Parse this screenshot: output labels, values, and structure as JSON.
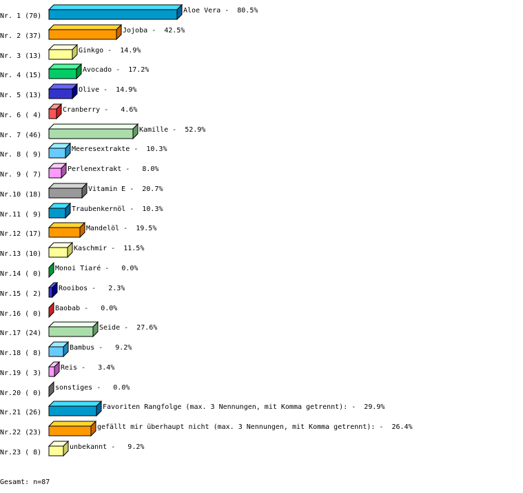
{
  "chart_data": {
    "type": "bar",
    "orientation": "horizontal",
    "style": "3d",
    "row_labels": [
      "Nr. 1 (70)",
      "Nr. 2 (37)",
      "Nr. 3 (13)",
      "Nr. 4 (15)",
      "Nr. 5 (13)",
      "Nr. 6 ( 4)",
      "Nr. 7 (46)",
      "Nr. 8 ( 9)",
      "Nr. 9 ( 7)",
      "Nr.10 (18)",
      "Nr.11 ( 9)",
      "Nr.12 (17)",
      "Nr.13 (10)",
      "Nr.14 ( 0)",
      "Nr.15 ( 2)",
      "Nr.16 ( 0)",
      "Nr.17 (24)",
      "Nr.18 ( 8)",
      "Nr.19 ( 3)",
      "Nr.20 ( 0)",
      "Nr.21 (26)",
      "Nr.22 (23)",
      "Nr.23 ( 8)"
    ],
    "categories": [
      "Aloe Vera",
      "Jojoba",
      "Ginkgo",
      "Avocado",
      "Olive",
      "Cranberry",
      "Kamille",
      "Meeresextrakte",
      "Perlenextrakt",
      "Vitamin E",
      "Traubenkernöl",
      "Mandelöl",
      "Kaschmir",
      "Monoi Tiaré",
      "Rooibos",
      "Baobab",
      "Seide",
      "Bambus",
      "Reis",
      "sonstiges",
      "Favoriten Rangfolge (max. 3 Nennungen, mit Komma getrennt):",
      "gefällt mir überhaupt nicht (max. 3 Nennungen, mit Komma getrennt):",
      "unbekannt"
    ],
    "counts": [
      70,
      37,
      13,
      15,
      13,
      4,
      46,
      9,
      7,
      18,
      9,
      17,
      10,
      0,
      2,
      0,
      24,
      8,
      3,
      0,
      26,
      23,
      8
    ],
    "values": [
      80.5,
      42.5,
      14.9,
      17.2,
      14.9,
      4.6,
      52.9,
      10.3,
      8.0,
      20.7,
      10.3,
      19.5,
      11.5,
      0.0,
      2.3,
      0.0,
      27.6,
      9.2,
      3.4,
      0.0,
      29.9,
      26.4,
      9.2
    ],
    "unit": "%",
    "xlim": [
      0,
      100
    ],
    "palette": [
      {
        "front": "#0099cc",
        "top": "#44ddff",
        "side": "#006699"
      },
      {
        "front": "#ff9900",
        "top": "#ffd633",
        "side": "#cc6600"
      },
      {
        "front": "#ffff99",
        "top": "#ffffdd",
        "side": "#cccc66"
      },
      {
        "front": "#00cc66",
        "top": "#44ff99",
        "side": "#009933"
      },
      {
        "front": "#3333cc",
        "top": "#6666ff",
        "side": "#000088"
      },
      {
        "front": "#ff5555",
        "top": "#ff9999",
        "side": "#cc2222"
      },
      {
        "front": "#aaddaa",
        "top": "#eeffee",
        "side": "#669966"
      },
      {
        "front": "#66ccff",
        "top": "#99eeff",
        "side": "#2288bb"
      },
      {
        "front": "#ff99ff",
        "top": "#ffccff",
        "side": "#aa55aa"
      },
      {
        "front": "#999999",
        "top": "#d4d4d4",
        "side": "#666666"
      }
    ]
  },
  "footer": {
    "total": "Gesamt: n=87"
  }
}
